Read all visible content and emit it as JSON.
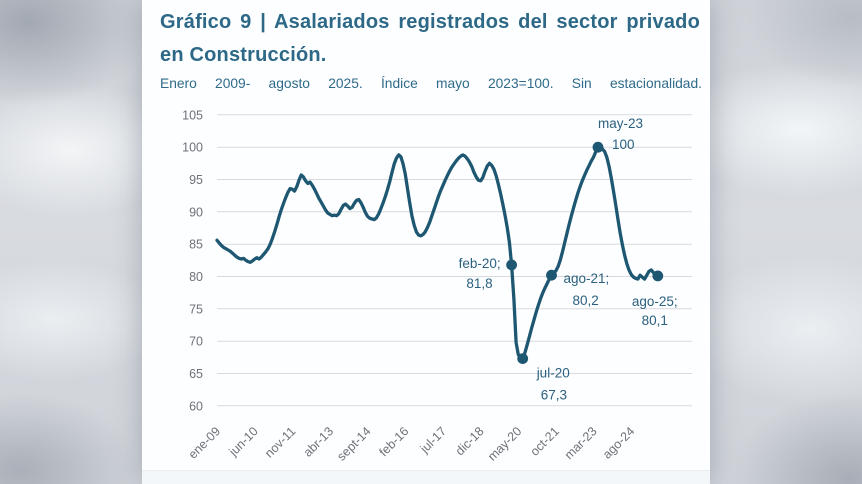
{
  "title": "Gráfico 9 | Asalariados registrados del sector privado en Construcción.",
  "subtitle": "Enero 2009- agosto 2025. Índice mayo 2023=100. Sin estacionalidad.",
  "chart_data": {
    "type": "line",
    "title": "Gráfico 9 | Asalariados registrados del sector privado en Construcción.",
    "subtitle": "Enero 2009- agosto 2025. Índice mayo 2023=100. Sin estacionalidad.",
    "series_name": "Asalariados registrados sector privado Construcción (índice may-23=100, sin estacionalidad)",
    "x_unit": "monthly, ene-09 to ago-25",
    "x_tick_step_months": 17,
    "x_tick_labels": [
      "ene-09",
      "jun-10",
      "nov-11",
      "abr-13",
      "sept-14",
      "feb-16",
      "jul-17",
      "dic-18",
      "may-20",
      "oct-21",
      "mar-23",
      "ago-24"
    ],
    "y_ticks": [
      105,
      100,
      95,
      90,
      85,
      80,
      75,
      70,
      65,
      60
    ],
    "ylim": [
      60,
      105
    ],
    "grid": "horizontal",
    "values": [
      85.6,
      85.2,
      84.8,
      84.5,
      84.3,
      84.1,
      83.9,
      83.6,
      83.3,
      83.0,
      82.8,
      82.7,
      82.8,
      82.5,
      82.3,
      82.2,
      82.4,
      82.7,
      82.9,
      82.7,
      83.0,
      83.4,
      83.8,
      84.3,
      85.0,
      85.9,
      86.9,
      88.0,
      89.2,
      90.3,
      91.3,
      92.2,
      93.0,
      93.6,
      93.5,
      93.2,
      93.9,
      94.9,
      95.7,
      95.4,
      94.8,
      94.4,
      94.6,
      94.1,
      93.5,
      92.8,
      92.1,
      91.5,
      90.9,
      90.3,
      89.8,
      89.6,
      89.4,
      89.5,
      89.4,
      89.7,
      90.4,
      91.0,
      91.2,
      90.9,
      90.5,
      90.7,
      91.3,
      91.8,
      91.9,
      91.4,
      90.7,
      89.9,
      89.3,
      89.0,
      88.9,
      88.8,
      89.1,
      89.7,
      90.5,
      91.4,
      92.4,
      93.5,
      94.7,
      96.1,
      97.4,
      98.3,
      98.8,
      98.5,
      97.4,
      95.8,
      93.6,
      91.4,
      89.4,
      87.9,
      86.9,
      86.4,
      86.3,
      86.5,
      86.9,
      87.6,
      88.4,
      89.4,
      90.4,
      91.4,
      92.4,
      93.3,
      94.1,
      94.9,
      95.6,
      96.3,
      96.9,
      97.4,
      97.9,
      98.3,
      98.6,
      98.8,
      98.6,
      98.2,
      97.7,
      97.0,
      96.1,
      95.4,
      94.9,
      94.8,
      95.3,
      96.3,
      97.1,
      97.5,
      97.2,
      96.6,
      95.6,
      94.3,
      92.8,
      91.2,
      89.5,
      87.6,
      85.3,
      81.8,
      76.5,
      69.8,
      67.9,
      67.5,
      67.3,
      68.2,
      69.4,
      70.7,
      72.0,
      73.2,
      74.4,
      75.5,
      76.5,
      77.4,
      78.2,
      78.9,
      79.6,
      80.2,
      80.5,
      80.9,
      81.6,
      82.6,
      83.9,
      85.3,
      86.7,
      88.1,
      89.4,
      90.7,
      91.9,
      93.0,
      94.0,
      94.9,
      95.7,
      96.5,
      97.2,
      97.9,
      98.5,
      99.3,
      100.0,
      99.9,
      99.7,
      99.3,
      98.4,
      97.0,
      95.2,
      93.2,
      91.0,
      88.8,
      86.7,
      84.9,
      83.3,
      82.0,
      81.0,
      80.3,
      79.9,
      79.7,
      79.6,
      80.2,
      79.9,
      79.6,
      80.2,
      80.8,
      81.0,
      80.6,
      80.3,
      80.1
    ],
    "annotations": [
      {
        "label_line1": "feb-20;",
        "label_line2": "81,8",
        "month_index": 133,
        "value": 81.8,
        "placement": "left"
      },
      {
        "label_line1": "jul-20",
        "label_line2": "67,3",
        "month_index": 138,
        "value": 67.3,
        "placement": "right-below"
      },
      {
        "label_line1": "ago-21;",
        "label_line2": "80,2",
        "month_index": 151,
        "value": 80.2,
        "placement": "right-below"
      },
      {
        "label_line1": "may-23",
        "label_line2": "100",
        "month_index": 172,
        "value": 100,
        "placement": "above"
      },
      {
        "label_line1": "ago-25;",
        "label_line2": "80,1",
        "month_index": 199,
        "value": 80.1,
        "placement": "below"
      }
    ],
    "colors": {
      "line": "#1e5772",
      "marker": "#1e5772",
      "grid": "#d8dadd",
      "axis_text": "#6d7278",
      "annotation_text": "#2b607f",
      "title_text": "#2d6887",
      "card_bg": "#fdfeff",
      "backdrop": "#d2d6db"
    }
  }
}
